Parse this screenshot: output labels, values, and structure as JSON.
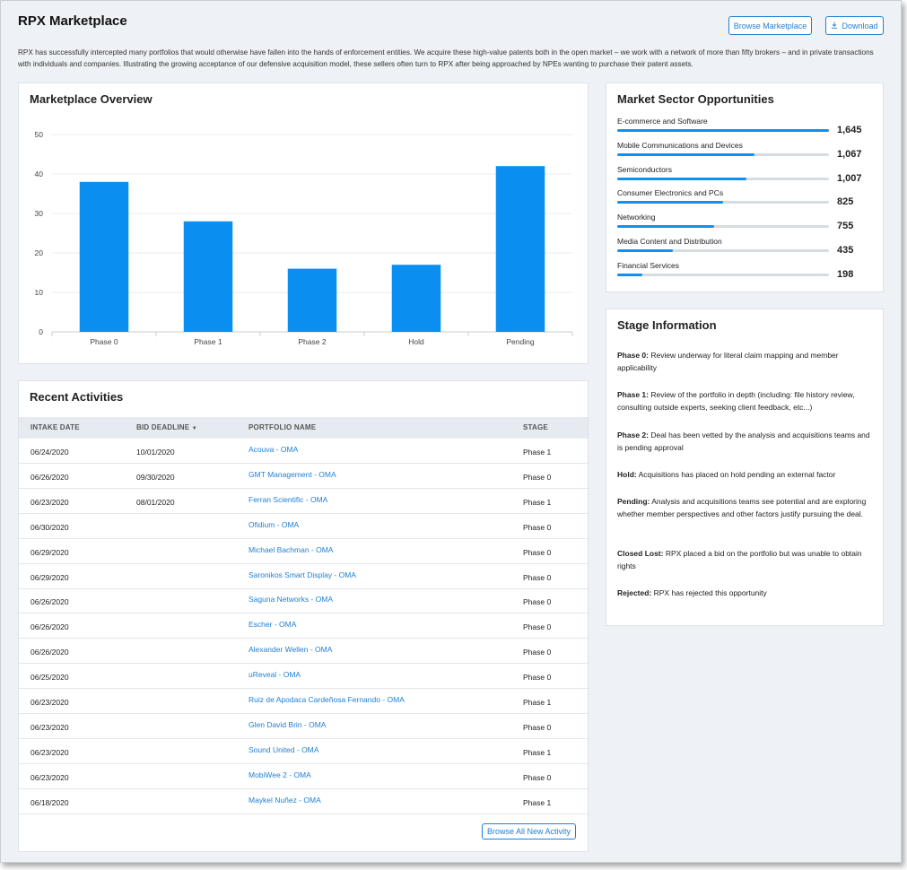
{
  "page": {
    "title": "RPX Marketplace",
    "intro": "RPX has successfully intercepted many portfolios that would otherwise have fallen into the hands of enforcement entities. We acquire these high-value patents both in the open market – we work with a network of more than fifty brokers – and in private transactions with individuals and companies. Illustrating the growing acceptance of our defensive acquisition model, these sellers often turn to RPX after being approached by NPEs wanting to purchase their patent assets."
  },
  "header": {
    "browse_label": "Browse Marketplace",
    "download_label": "Download",
    "download_icon": "download-icon"
  },
  "overview": {
    "title": "Marketplace Overview"
  },
  "chart_data": {
    "type": "bar",
    "title": "",
    "xlabel": "",
    "ylabel": "",
    "categories": [
      "Phase 0",
      "Phase 1",
      "Phase 2",
      "Hold",
      "Pending"
    ],
    "values": [
      38,
      28,
      16,
      17,
      42
    ],
    "ylim": [
      0,
      50
    ],
    "yticks": [
      0,
      10,
      20,
      30,
      40,
      50
    ],
    "grid": true,
    "color": "#0a8ff0"
  },
  "activities": {
    "title": "Recent Activities",
    "columns": {
      "intake": "INTAKE DATE",
      "deadline": "BID DEADLINE",
      "deadline_sort_icon": "sort-down-icon",
      "portfolio": "PORTFOLIO NAME",
      "stage": "STAGE"
    },
    "rows": [
      {
        "intake": "06/24/2020",
        "deadline": "10/01/2020",
        "portfolio": "Acouva - OMA",
        "stage": "Phase 1"
      },
      {
        "intake": "06/26/2020",
        "deadline": "09/30/2020",
        "portfolio": "GMT Management - OMA",
        "stage": "Phase 0"
      },
      {
        "intake": "06/23/2020",
        "deadline": "08/01/2020",
        "portfolio": "Ferran Scientific - OMA",
        "stage": "Phase 1"
      },
      {
        "intake": "06/30/2020",
        "deadline": "",
        "portfolio": "Ofidium - OMA",
        "stage": "Phase 0"
      },
      {
        "intake": "06/29/2020",
        "deadline": "",
        "portfolio": "Michael Bachman - OMA",
        "stage": "Phase 0"
      },
      {
        "intake": "06/29/2020",
        "deadline": "",
        "portfolio": "Saronikos Smart Display - OMA",
        "stage": "Phase 0"
      },
      {
        "intake": "06/26/2020",
        "deadline": "",
        "portfolio": "Saguna Networks - OMA",
        "stage": "Phase 0"
      },
      {
        "intake": "06/26/2020",
        "deadline": "",
        "portfolio": "Escher - OMA",
        "stage": "Phase 0"
      },
      {
        "intake": "06/26/2020",
        "deadline": "",
        "portfolio": "Alexander Wellen - OMA",
        "stage": "Phase 0"
      },
      {
        "intake": "06/25/2020",
        "deadline": "",
        "portfolio": "uReveal - OMA",
        "stage": "Phase 0"
      },
      {
        "intake": "06/23/2020",
        "deadline": "",
        "portfolio": "Ruiz de Apodaca Cardeñosa Fernando - OMA",
        "stage": "Phase 1"
      },
      {
        "intake": "06/23/2020",
        "deadline": "",
        "portfolio": "Glen David Brin - OMA",
        "stage": "Phase 0"
      },
      {
        "intake": "06/23/2020",
        "deadline": "",
        "portfolio": "Sound United - OMA",
        "stage": "Phase 1"
      },
      {
        "intake": "06/23/2020",
        "deadline": "",
        "portfolio": "MobiWee 2 - OMA",
        "stage": "Phase 0"
      },
      {
        "intake": "06/18/2020",
        "deadline": "",
        "portfolio": "Maykel Nuñez - OMA",
        "stage": "Phase 1"
      }
    ],
    "browse_all_label": "Browse All New Activity"
  },
  "sectors": {
    "title": "Market Sector Opportunities",
    "max": 1645,
    "items": [
      {
        "label": "E-commerce and Software",
        "value": "1,645",
        "amount": 1645
      },
      {
        "label": "Mobile Communications and Devices",
        "value": "1,067",
        "amount": 1067
      },
      {
        "label": "Semiconductors",
        "value": "1,007",
        "amount": 1007
      },
      {
        "label": "Consumer Electronics and PCs",
        "value": "825",
        "amount": 825
      },
      {
        "label": "Networking",
        "value": "755",
        "amount": 755
      },
      {
        "label": "Media Content and Distribution",
        "value": "435",
        "amount": 435
      },
      {
        "label": "Financial Services",
        "value": "198",
        "amount": 198
      }
    ]
  },
  "stages": {
    "title": "Stage Information",
    "items": [
      {
        "term": "Phase 0:",
        "desc": " Review underway for literal claim mapping and member applicability"
      },
      {
        "term": "Phase 1:",
        "desc": " Review of the portfolio in depth (including: file history review, consulting outside experts, seeking client feedback, etc...)"
      },
      {
        "term": "Phase 2:",
        "desc": " Deal has been vetted by the analysis and acquisitions teams and is pending approval"
      },
      {
        "term": "Hold:",
        "desc": " Acquisitions has placed on hold pending an external factor"
      },
      {
        "term": "Pending:",
        "desc": " Analysis and acquisitions teams see potential and are exploring whether member perspectives and other factors justify pursuing the deal."
      },
      {
        "term": "Closed Lost:",
        "desc": " RPX placed a bid on the portfolio but was unable to obtain rights"
      },
      {
        "term": "Rejected:",
        "desc": " RPX has rejected this opportunity"
      }
    ]
  }
}
